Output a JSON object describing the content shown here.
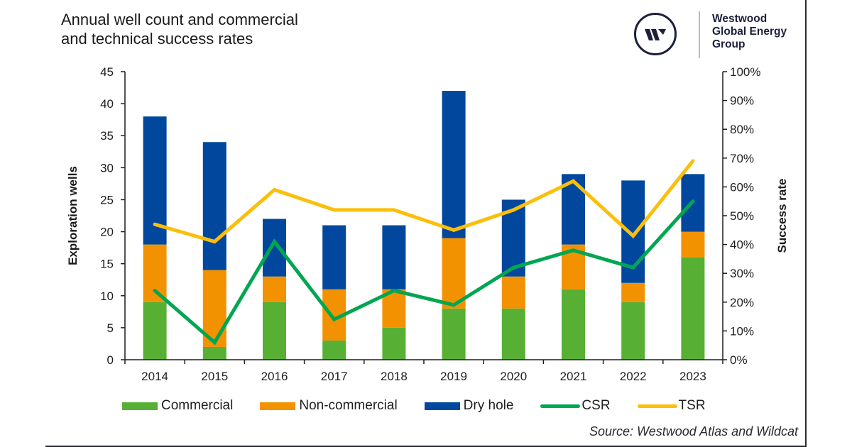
{
  "header": {
    "title_line1": "Annual well count and commercial",
    "title_line2": "and technical success rates"
  },
  "logo": {
    "line1": "Westwood",
    "line2": "Global Energy",
    "line3": "Group",
    "brand_color": "#1d1f3b"
  },
  "source": "Source: Westwood Atlas and Wildcat",
  "chart_data": {
    "type": "bar",
    "stacked": true,
    "title": "Annual well count and commercial and technical success rates",
    "categories": [
      "2014",
      "2015",
      "2016",
      "2017",
      "2018",
      "2019",
      "2020",
      "2021",
      "2022",
      "2023"
    ],
    "series": [
      {
        "name": "Commercial",
        "kind": "bar",
        "axis": "left",
        "color": "#57b033",
        "values": [
          9,
          2,
          9,
          3,
          5,
          8,
          8,
          11,
          9,
          16
        ]
      },
      {
        "name": "Non-commercial",
        "kind": "bar",
        "axis": "left",
        "color": "#f39200",
        "values": [
          9,
          12,
          4,
          8,
          6,
          11,
          5,
          7,
          3,
          4
        ]
      },
      {
        "name": "Dry hole",
        "kind": "bar",
        "axis": "left",
        "color": "#00479d",
        "values": [
          20,
          20,
          9,
          10,
          10,
          23,
          12,
          11,
          16,
          9
        ]
      },
      {
        "name": "CSR",
        "kind": "line",
        "axis": "right",
        "color": "#00a651",
        "values": [
          24,
          6,
          41,
          14,
          24,
          19,
          32,
          38,
          32,
          55
        ]
      },
      {
        "name": "TSR",
        "kind": "line",
        "axis": "right",
        "color": "#fbbf0b",
        "values": [
          47,
          41,
          59,
          52,
          52,
          45,
          52,
          62,
          43,
          69
        ]
      }
    ],
    "ylabel": "Exploration wells",
    "ylim": [
      0,
      45
    ],
    "yticks": [
      "0",
      "5",
      "10",
      "15",
      "20",
      "25",
      "30",
      "35",
      "40",
      "45"
    ],
    "y2label": "Success rate",
    "y2lim": [
      0,
      100
    ],
    "y2ticks": [
      "0%",
      "10%",
      "20%",
      "30%",
      "40%",
      "50%",
      "60%",
      "70%",
      "80%",
      "90%",
      "100%"
    ],
    "grid": false,
    "legend_position": "bottom"
  }
}
